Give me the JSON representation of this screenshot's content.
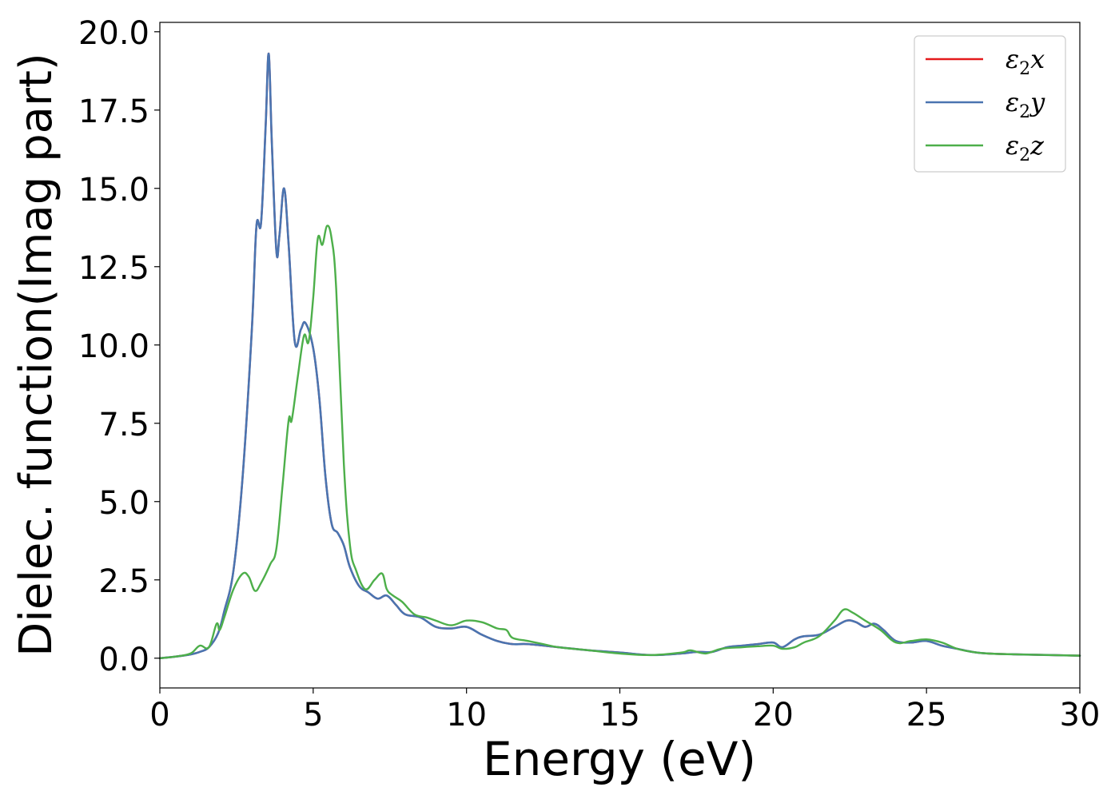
{
  "chart_data": {
    "type": "line",
    "xlabel": "Energy (eV)",
    "ylabel": "Dielec. function(Imag part)",
    "xlim": [
      0,
      30
    ],
    "ylim": [
      -0.95,
      20.3
    ],
    "xticks": [
      0,
      5,
      10,
      15,
      20,
      25,
      30
    ],
    "yticks": [
      0.0,
      2.5,
      5.0,
      7.5,
      10.0,
      12.5,
      15.0,
      17.5,
      20.0
    ],
    "xtick_labels": [
      "0",
      "5",
      "10",
      "15",
      "20",
      "25",
      "30"
    ],
    "ytick_labels": [
      "0.0",
      "2.5",
      "5.0",
      "7.5",
      "10.0",
      "12.5",
      "15.0",
      "17.5",
      "20.0"
    ],
    "grid": false,
    "legend_position": "top-right",
    "series": [
      {
        "name": "ε₂x",
        "legend_base": "ε",
        "legend_sub": "2",
        "legend_var": "x",
        "color": "#e41a1c",
        "x": [
          0,
          0.5,
          1,
          1.3,
          1.6,
          1.9,
          2.1,
          2.4,
          2.7,
          3.0,
          3.15,
          3.3,
          3.45,
          3.55,
          3.65,
          3.8,
          3.9,
          4.05,
          4.2,
          4.4,
          4.6,
          4.75,
          5.0,
          5.2,
          5.4,
          5.6,
          5.8,
          6.0,
          6.2,
          6.5,
          6.8,
          7.1,
          7.4,
          7.7,
          8.0,
          8.5,
          9.0,
          9.5,
          10.0,
          10.5,
          11.0,
          11.5,
          12.0,
          13.0,
          14.0,
          15.0,
          16.0,
          17.0,
          17.5,
          18.0,
          18.5,
          19.0,
          19.5,
          20.0,
          20.3,
          20.7,
          21.0,
          21.5,
          22.0,
          22.4,
          22.7,
          23.0,
          23.3,
          23.6,
          24.0,
          24.5,
          25.0,
          25.5,
          26.0,
          26.5,
          27.0,
          28.0,
          29.0,
          30.0
        ],
        "y": [
          0.0,
          0.05,
          0.12,
          0.2,
          0.35,
          0.8,
          1.5,
          2.8,
          5.8,
          10.5,
          13.8,
          13.9,
          17.0,
          19.3,
          16.5,
          13.0,
          13.5,
          15.0,
          13.2,
          10.1,
          10.5,
          10.7,
          9.9,
          8.3,
          5.8,
          4.3,
          4.0,
          3.6,
          2.9,
          2.3,
          2.1,
          1.9,
          2.0,
          1.7,
          1.4,
          1.3,
          1.0,
          0.95,
          1.0,
          0.75,
          0.55,
          0.45,
          0.45,
          0.35,
          0.25,
          0.18,
          0.1,
          0.15,
          0.2,
          0.2,
          0.35,
          0.4,
          0.45,
          0.5,
          0.35,
          0.6,
          0.7,
          0.75,
          1.0,
          1.2,
          1.15,
          1.0,
          1.1,
          0.9,
          0.55,
          0.5,
          0.55,
          0.4,
          0.3,
          0.2,
          0.15,
          0.12,
          0.1,
          0.08
        ]
      },
      {
        "name": "ε₂y",
        "legend_base": "ε",
        "legend_sub": "2",
        "legend_var": "y",
        "color": "#4a74b0",
        "x": [
          0,
          0.5,
          1,
          1.3,
          1.6,
          1.9,
          2.1,
          2.4,
          2.7,
          3.0,
          3.15,
          3.3,
          3.45,
          3.55,
          3.65,
          3.8,
          3.9,
          4.05,
          4.2,
          4.4,
          4.6,
          4.75,
          5.0,
          5.2,
          5.4,
          5.6,
          5.8,
          6.0,
          6.2,
          6.5,
          6.8,
          7.1,
          7.4,
          7.7,
          8.0,
          8.5,
          9.0,
          9.5,
          10.0,
          10.5,
          11.0,
          11.5,
          12.0,
          13.0,
          14.0,
          15.0,
          16.0,
          17.0,
          17.5,
          18.0,
          18.5,
          19.0,
          19.5,
          20.0,
          20.3,
          20.7,
          21.0,
          21.5,
          22.0,
          22.4,
          22.7,
          23.0,
          23.3,
          23.6,
          24.0,
          24.5,
          25.0,
          25.5,
          26.0,
          26.5,
          27.0,
          28.0,
          29.0,
          30.0
        ],
        "y": [
          0.0,
          0.05,
          0.12,
          0.2,
          0.35,
          0.8,
          1.5,
          2.8,
          5.8,
          10.5,
          13.8,
          13.9,
          17.0,
          19.3,
          16.5,
          13.0,
          13.5,
          15.0,
          13.2,
          10.1,
          10.5,
          10.7,
          9.9,
          8.3,
          5.8,
          4.3,
          4.0,
          3.6,
          2.9,
          2.3,
          2.1,
          1.9,
          2.0,
          1.7,
          1.4,
          1.3,
          1.0,
          0.95,
          1.0,
          0.75,
          0.55,
          0.45,
          0.45,
          0.35,
          0.25,
          0.18,
          0.1,
          0.15,
          0.2,
          0.2,
          0.35,
          0.4,
          0.45,
          0.5,
          0.35,
          0.6,
          0.7,
          0.75,
          1.0,
          1.2,
          1.15,
          1.0,
          1.1,
          0.9,
          0.55,
          0.5,
          0.55,
          0.4,
          0.3,
          0.2,
          0.15,
          0.12,
          0.1,
          0.08
        ]
      },
      {
        "name": "ε₂z",
        "legend_base": "ε",
        "legend_sub": "2",
        "legend_var": "z",
        "color": "#4daf4a",
        "x": [
          0,
          0.5,
          1.0,
          1.3,
          1.6,
          1.85,
          1.95,
          2.1,
          2.4,
          2.7,
          2.9,
          3.1,
          3.3,
          3.6,
          3.8,
          4.0,
          4.2,
          4.3,
          4.5,
          4.7,
          4.85,
          5.0,
          5.15,
          5.3,
          5.45,
          5.6,
          5.75,
          6.0,
          6.2,
          6.4,
          6.7,
          7.0,
          7.25,
          7.4,
          7.6,
          7.9,
          8.3,
          8.7,
          9.0,
          9.5,
          10.0,
          10.5,
          11.0,
          11.3,
          11.5,
          12.0,
          12.5,
          13.0,
          14.0,
          15.0,
          16.0,
          17.0,
          17.3,
          17.8,
          18.3,
          19.0,
          19.5,
          20.0,
          20.3,
          20.7,
          21.0,
          21.5,
          22.0,
          22.3,
          22.6,
          23.0,
          23.5,
          24.0,
          24.5,
          25.0,
          25.5,
          26.0,
          26.5,
          27.0,
          28.0,
          29.0,
          30.0
        ],
        "y": [
          0.0,
          0.05,
          0.15,
          0.4,
          0.35,
          1.1,
          0.9,
          1.3,
          2.2,
          2.7,
          2.6,
          2.15,
          2.4,
          3.0,
          3.5,
          5.5,
          7.6,
          7.6,
          9.0,
          10.3,
          10.1,
          11.5,
          13.4,
          13.2,
          13.8,
          13.4,
          11.8,
          6.2,
          3.6,
          2.8,
          2.2,
          2.5,
          2.7,
          2.2,
          2.0,
          1.8,
          1.4,
          1.3,
          1.2,
          1.05,
          1.2,
          1.15,
          0.95,
          0.9,
          0.65,
          0.55,
          0.45,
          0.35,
          0.25,
          0.15,
          0.1,
          0.18,
          0.25,
          0.15,
          0.3,
          0.35,
          0.38,
          0.4,
          0.3,
          0.35,
          0.5,
          0.7,
          1.2,
          1.55,
          1.45,
          1.2,
          0.9,
          0.5,
          0.55,
          0.6,
          0.5,
          0.3,
          0.2,
          0.15,
          0.12,
          0.1,
          0.08
        ]
      }
    ]
  }
}
